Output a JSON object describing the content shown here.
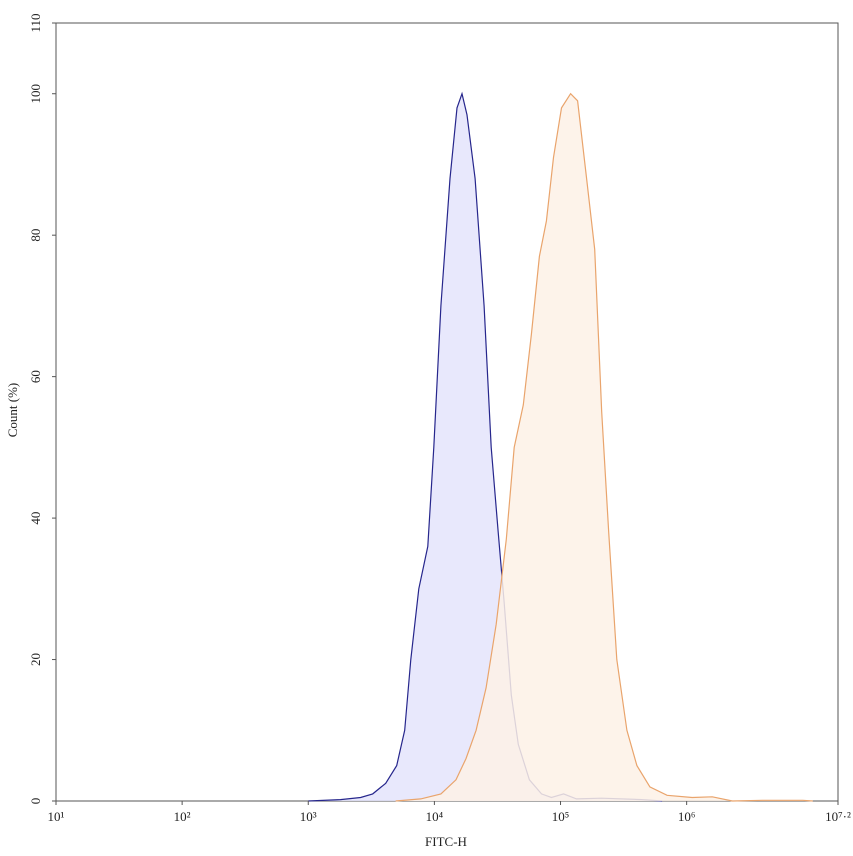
{
  "chart_data": {
    "type": "histogram-overlay",
    "xlabel": "FITC-H",
    "ylabel": "Count (%)",
    "xscale": "log",
    "xlim": [
      10,
      15848931.92
    ],
    "xticks": [
      {
        "value": 10,
        "label": "10¹"
      },
      {
        "value": 100,
        "label": "10²"
      },
      {
        "value": 1000,
        "label": "10³"
      },
      {
        "value": 10000,
        "label": "10⁴"
      },
      {
        "value": 100000,
        "label": "10⁵"
      },
      {
        "value": 1000000,
        "label": "10⁶"
      },
      {
        "value": 15848931.92,
        "label": "10⁷·²"
      }
    ],
    "ylim": [
      0,
      110
    ],
    "yticks": [
      0,
      20,
      40,
      60,
      80,
      100,
      110
    ],
    "series": [
      {
        "color": "#26268c",
        "fill": "#e4e4fb",
        "x": [
          1000,
          1800,
          2600,
          3240,
          4110,
          5030,
          5820,
          6500,
          7520,
          8870,
          9900,
          11270,
          13300,
          15100,
          16560,
          18150,
          21030,
          24800,
          28200,
          32060,
          35800,
          40740,
          46240,
          56620,
          70630,
          84720,
          105700,
          134000,
          212200,
          441800,
          638300
        ],
        "values": [
          0,
          0.2,
          0.5,
          1,
          2.5,
          5,
          10,
          20,
          30,
          36,
          50,
          70,
          88,
          98,
          100,
          97,
          88,
          70,
          50,
          38,
          28,
          15,
          8,
          3,
          1,
          0.5,
          1,
          0.3,
          0.4,
          0.2,
          0
        ]
      },
      {
        "color": "#e9a46c",
        "fill": "#fdf1e6",
        "x": [
          4930,
          7800,
          11270,
          14830,
          17820,
          21420,
          25700,
          30900,
          37150,
          42950,
          50700,
          58750,
          68060,
          77260,
          87900,
          101900,
          120200,
          136500,
          161100,
          186600,
          212200,
          241000,
          279300,
          335700,
          403600,
          511700,
          699800,
          1107000,
          1596000,
          2307000,
          3999000,
          8318000,
          10000000
        ],
        "values": [
          0,
          0.3,
          1,
          3,
          6,
          10,
          16,
          25,
          37,
          50,
          56,
          66,
          77,
          82,
          91,
          98,
          100,
          99,
          88,
          78,
          55,
          38,
          20,
          10,
          5,
          2,
          0.8,
          0.5,
          0.6,
          0,
          0.1,
          0.1,
          0
        ]
      }
    ]
  }
}
